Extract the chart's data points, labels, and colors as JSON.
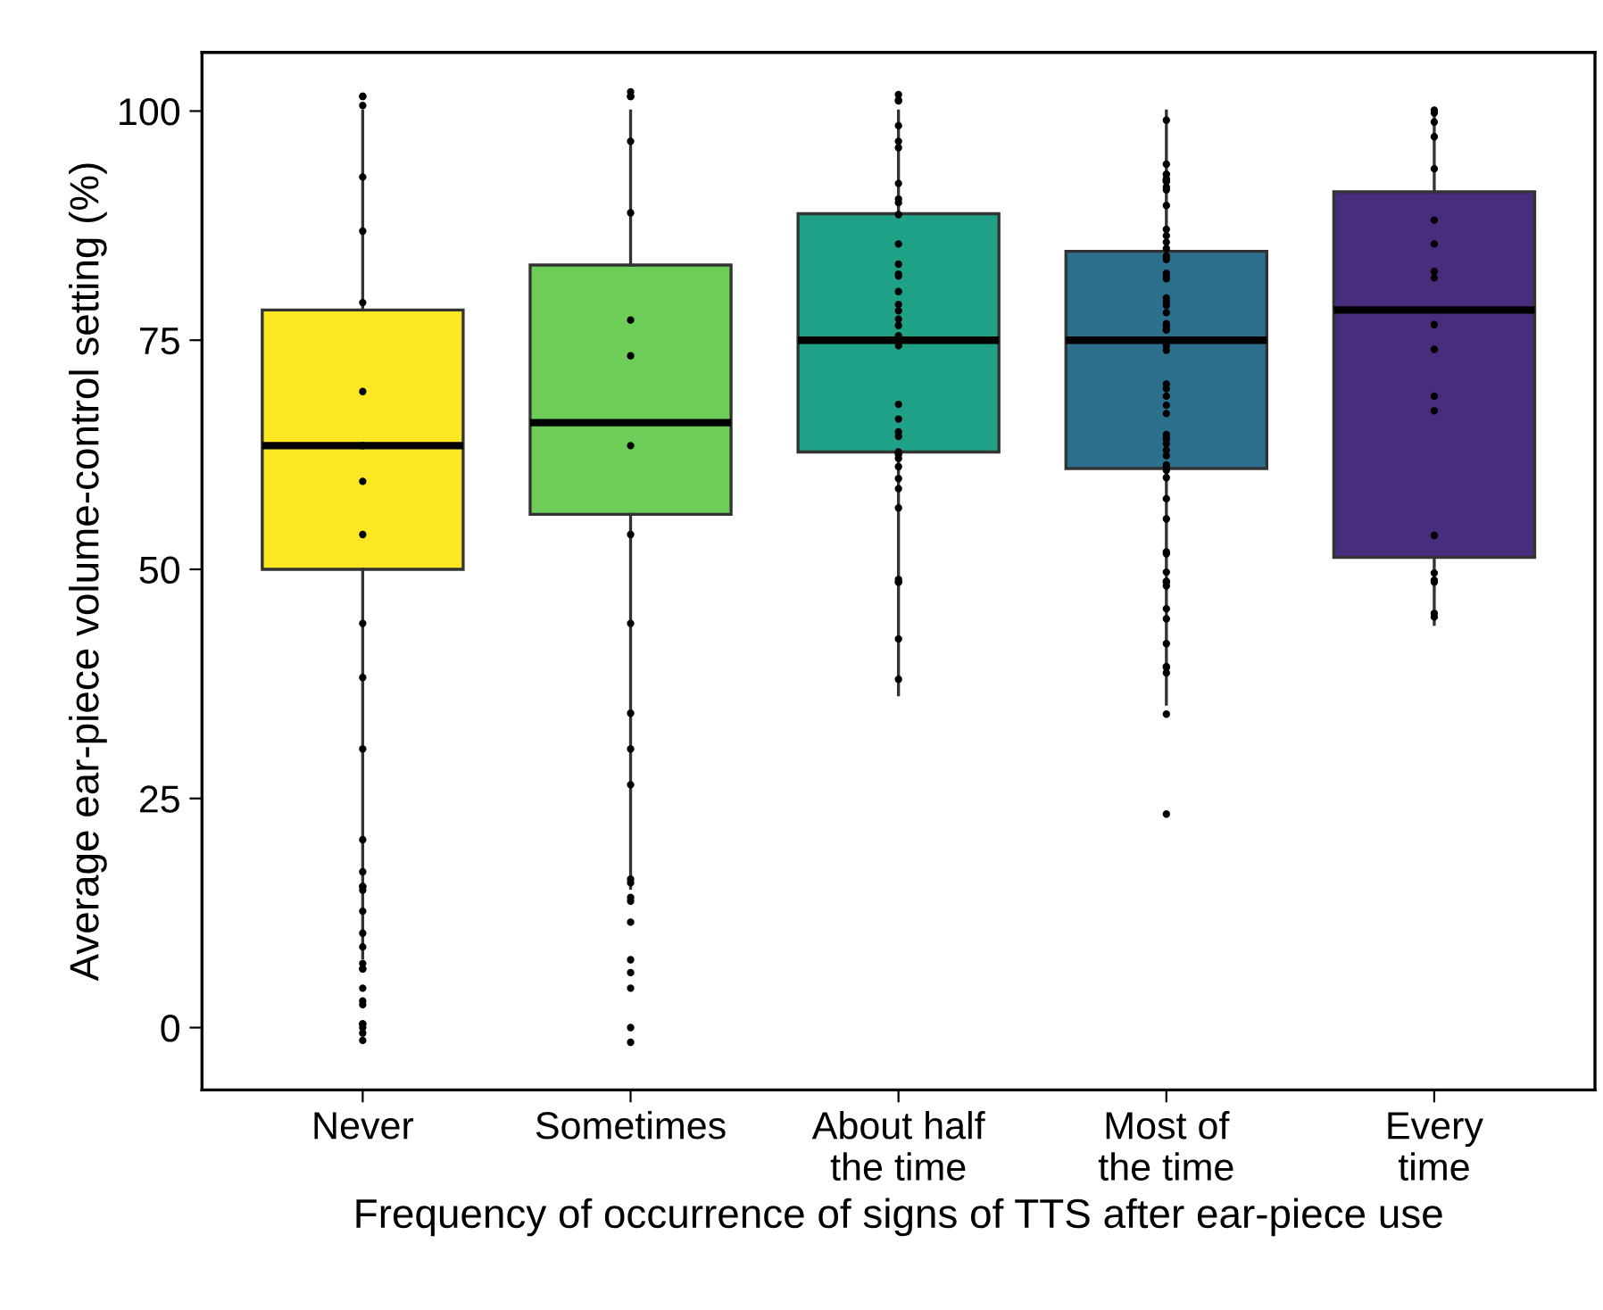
{
  "chart_data": {
    "type": "box",
    "xlabel": "Frequency of occurrence of signs of TTS after ear-piece use",
    "ylabel": "Average ear-piece volume-control setting (%)",
    "categories": [
      "Never",
      "Sometimes",
      "About half\nthe time",
      "Most of\nthe time",
      "Every\ntime"
    ],
    "ylim": [
      -6.8,
      106.4
    ],
    "yticks": [
      0,
      25,
      50,
      75,
      100
    ],
    "grid": false,
    "legend": false,
    "colors": [
      "#fde725",
      "#6dcd59",
      "#1fa187",
      "#2d708e",
      "#472d7b"
    ],
    "boxes": [
      {
        "low": 7.6,
        "q1": 50,
        "median": 63.5,
        "q3": 78.3,
        "high": 100
      },
      {
        "low": 15.2,
        "q1": 56,
        "median": 66,
        "q3": 83.2,
        "high": 100
      },
      {
        "low": 36.3,
        "q1": 62.8,
        "median": 75,
        "q3": 88.8,
        "high": 100
      },
      {
        "low": 35.3,
        "q1": 61,
        "median": 75,
        "q3": 84.7,
        "high": 100
      },
      {
        "low": 44,
        "q1": 51.3,
        "median": 78.3,
        "q3": 91.2,
        "high": 100
      }
    ],
    "series": [
      {
        "type": "scatter",
        "color": "#000000",
        "marker": "circle",
        "x": [
          "Never",
          "Never",
          "Never",
          "Never",
          "Never",
          "Never",
          "Never",
          "Never",
          "Never",
          "Never",
          "Never",
          "Never",
          "Never",
          "Never",
          "Never",
          "Never",
          "Never",
          "Never",
          "Never",
          "Never",
          "Never",
          "Never",
          "Never",
          "Never",
          "Never",
          "Never",
          "Never",
          "Never",
          "Never",
          "Never",
          "Never",
          "Never",
          "Sometimes",
          "Sometimes",
          "Sometimes",
          "Sometimes",
          "Sometimes",
          "Sometimes",
          "Sometimes",
          "Sometimes",
          "Sometimes",
          "Sometimes",
          "Sometimes",
          "Sometimes",
          "Sometimes",
          "Sometimes",
          "Sometimes",
          "Sometimes",
          "Sometimes",
          "Sometimes",
          "Sometimes",
          "Sometimes",
          "Sometimes",
          "Sometimes",
          "Sometimes",
          "About half\nthe time",
          "About half\nthe time",
          "About half\nthe time",
          "About half\nthe time",
          "About half\nthe time",
          "About half\nthe time",
          "About half\nthe time",
          "About half\nthe time",
          "About half\nthe time",
          "About half\nthe time",
          "About half\nthe time",
          "About half\nthe time",
          "About half\nthe time",
          "About half\nthe time",
          "About half\nthe time",
          "About half\nthe time",
          "About half\nthe time",
          "About half\nthe time",
          "About half\nthe time",
          "About half\nthe time",
          "About half\nthe time",
          "About half\nthe time",
          "About half\nthe time",
          "About half\nthe time",
          "About half\nthe time",
          "About half\nthe time",
          "About half\nthe time",
          "About half\nthe time",
          "About half\nthe time",
          "About half\nthe time",
          "About half\nthe time",
          "About half\nthe time",
          "About half\nthe time",
          "About half\nthe time",
          "About half\nthe time",
          "About half\nthe time",
          "About half\nthe time",
          "About half\nthe time",
          "Most of\nthe time",
          "Most of\nthe time",
          "Most of\nthe time",
          "Most of\nthe time",
          "Most of\nthe time",
          "Most of\nthe time",
          "Most of\nthe time",
          "Most of\nthe time",
          "Most of\nthe time",
          "Most of\nthe time",
          "Most of\nthe time",
          "Most of\nthe time",
          "Most of\nthe time",
          "Most of\nthe time",
          "Most of\nthe time",
          "Most of\nthe time",
          "Most of\nthe time",
          "Most of\nthe time",
          "Most of\nthe time",
          "Most of\nthe time",
          "Most of\nthe time",
          "Most of\nthe time",
          "Most of\nthe time",
          "Most of\nthe time",
          "Most of\nthe time",
          "Most of\nthe time",
          "Most of\nthe time",
          "Most of\nthe time",
          "Most of\nthe time",
          "Most of\nthe time",
          "Most of\nthe time",
          "Most of\nthe time",
          "Most of\nthe time",
          "Most of\nthe time",
          "Most of\nthe time",
          "Most of\nthe time",
          "Most of\nthe time",
          "Most of\nthe time",
          "Most of\nthe time",
          "Most of\nthe time",
          "Most of\nthe time",
          "Most of\nthe time",
          "Most of\nthe time",
          "Most of\nthe time",
          "Most of\nthe time",
          "Most of\nthe time",
          "Most of\nthe time",
          "Most of\nthe time",
          "Most of\nthe time",
          "Most of\nthe time",
          "Most of\nthe time",
          "Most of\nthe time",
          "Most of\nthe time",
          "Most of\nthe time",
          "Most of\nthe time",
          "Most of\nthe time",
          "Most of\nthe time",
          "Most of\nthe time",
          "Most of\nthe time",
          "Most of\nthe time",
          "Most of\nthe time",
          "Most of\nthe time",
          "Every\ntime",
          "Every\ntime",
          "Every\ntime",
          "Every\ntime",
          "Every\ntime",
          "Every\ntime",
          "Every\ntime",
          "Every\ntime",
          "Every\ntime",
          "Every\ntime",
          "Every\ntime",
          "Every\ntime",
          "Every\ntime",
          "Every\ntime",
          "Every\ntime",
          "Every\ntime",
          "Every\ntime",
          "Every\ntime",
          "Every\ntime"
        ],
        "values": [
          20.5,
          15.4,
          12.7,
          10.3,
          15.0,
          15.4,
          8.8,
          7.0,
          6.4,
          6.4,
          0.4,
          0,
          -0.6,
          -1.4,
          0.4,
          4.3,
          2.5,
          2.9,
          17.0,
          101.6,
          101.6,
          100.6,
          53.8,
          44.1,
          30.4,
          38.2,
          63.5,
          69.4,
          86.9,
          92.8,
          59.6,
          79.1,
          13.8,
          16.2,
          14.2,
          11.5,
          7.4,
          6.0,
          4.3,
          0,
          -1.6,
          15.8,
          101.6,
          101.6,
          102.1,
          44.1,
          34.3,
          53.8,
          63.5,
          77.2,
          88.9,
          73.3,
          26.5,
          30.4,
          96.7,
          101.1,
          101.2,
          101.8,
          98.4,
          96.7,
          96.0,
          92.1,
          90.0,
          90.4,
          88.7,
          85.5,
          83.3,
          82.0,
          80.3,
          78.9,
          82.2,
          78.2,
          77.3,
          76.6,
          75.5,
          74.4,
          68.0,
          66.4,
          65.0,
          64.5,
          62.7,
          62.5,
          62.1,
          62.8,
          61.2,
          59.9,
          58.8,
          56.7,
          48.6,
          48.6,
          48.9,
          42.4,
          38.0,
          99.0,
          92.3,
          91.4,
          93.1,
          92.5,
          91.7,
          94.2,
          92.6,
          93.1,
          92.4,
          89.7,
          87.1,
          86.4,
          85.7,
          85.0,
          84.2,
          83.8,
          84.0,
          81.9,
          81.7,
          82.3,
          79.6,
          79.2,
          78.8,
          78.0,
          76.8,
          76.5,
          76.2,
          76.1,
          74.4,
          73.9,
          70.2,
          69.7,
          68.9,
          67.9,
          67.0,
          64.7,
          64.4,
          64.2,
          63.7,
          63.0,
          62.4,
          61.4,
          60.8,
          61.1,
          60.0,
          57.7,
          55.5,
          51.9,
          51.7,
          49.7,
          48.7,
          48.6,
          48.2,
          45.7,
          44.6,
          41.9,
          39.4,
          39.3,
          38.7,
          34.2,
          23.3,
          100.1,
          99.8,
          98.8,
          97.2,
          93.7,
          88.1,
          85.5,
          82.5,
          81.8,
          76.7,
          74.0,
          68.9,
          67.3,
          53.7,
          49.6,
          48.6,
          48.8,
          44.8,
          45.2
        ]
      }
    ]
  }
}
